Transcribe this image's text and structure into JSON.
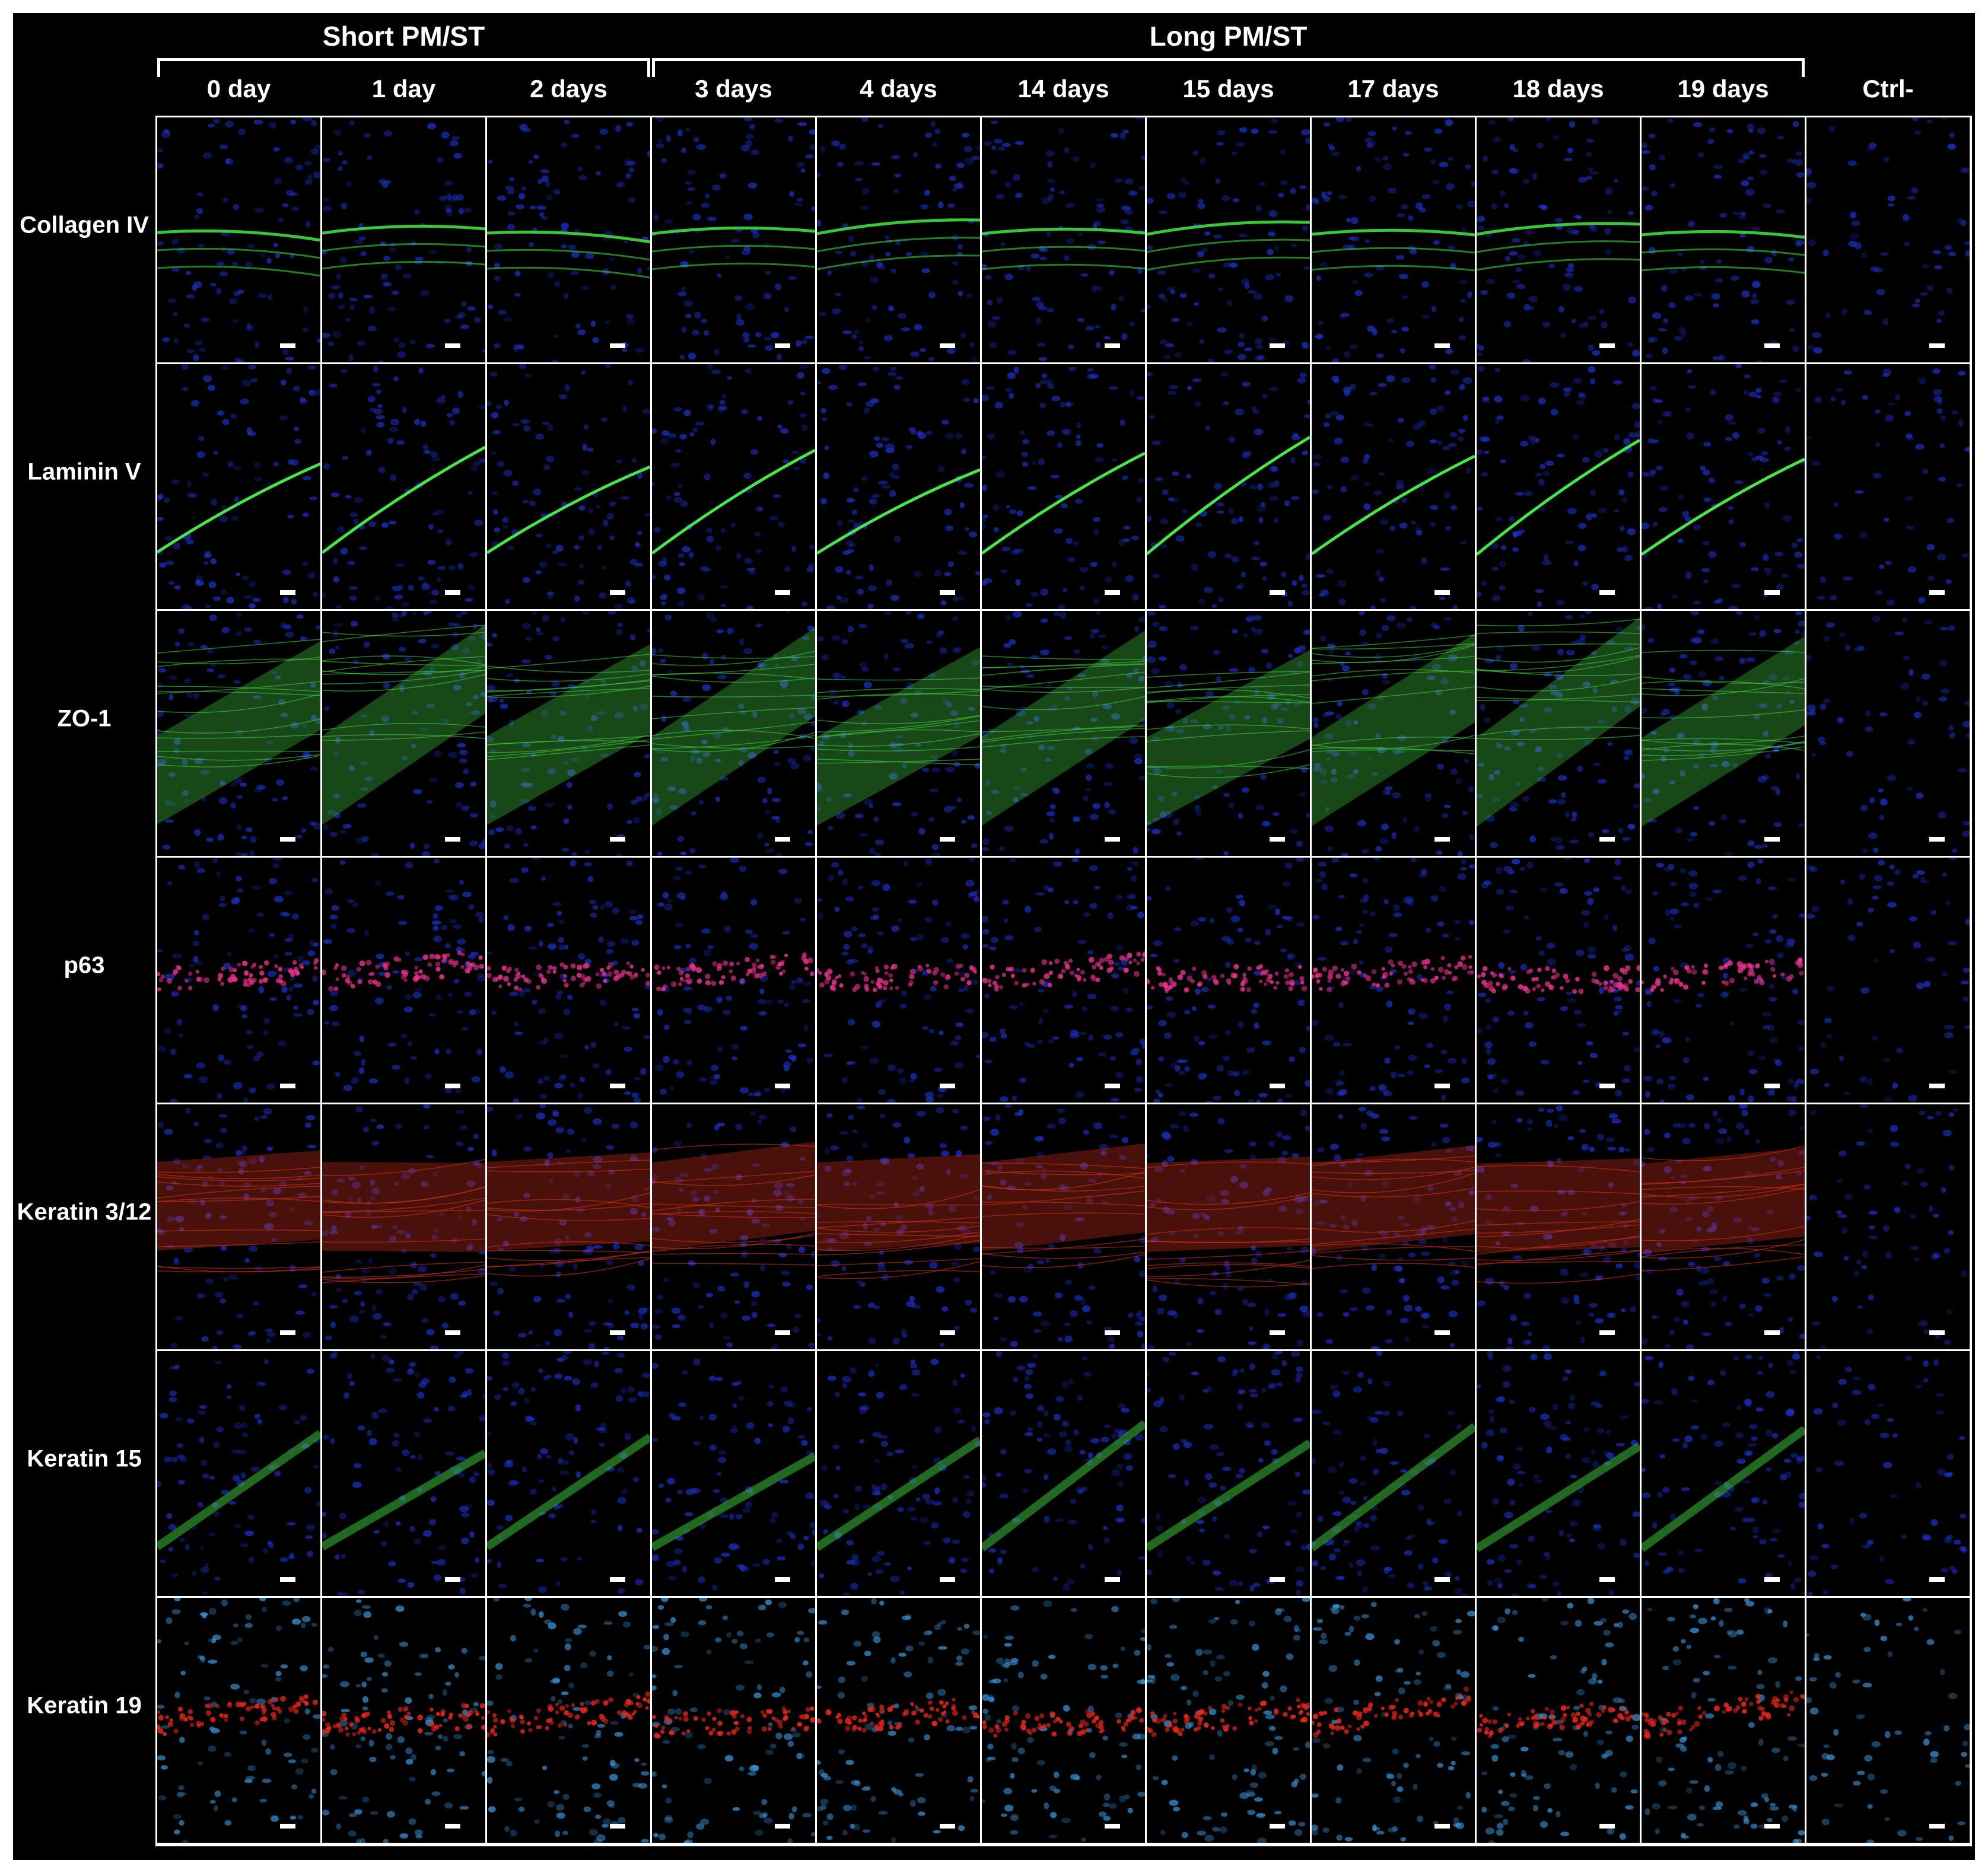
{
  "groups": [
    {
      "label": "Short PM/ST",
      "span": [
        0,
        2
      ]
    },
    {
      "label": "Long PM/ST",
      "span": [
        3,
        9
      ]
    }
  ],
  "columns": [
    "0 day",
    "1 day",
    "2 days",
    "3 days",
    "4 days",
    "14 days",
    "15 days",
    "17 days",
    "18 days",
    "19 days",
    "Ctrl-"
  ],
  "rows": [
    {
      "label": "Collagen IV",
      "stain": "collagen",
      "color": "#3cd23c"
    },
    {
      "label": "Laminin V",
      "stain": "laminin",
      "color": "#4cf04c"
    },
    {
      "label": "ZO-1",
      "stain": "zo1",
      "color": "#44cc44"
    },
    {
      "label": "p63",
      "stain": "p63",
      "color": "#e6328c"
    },
    {
      "label": "Keratin 3/12",
      "stain": "k312",
      "color": "#d2321e"
    },
    {
      "label": "Keratin 15",
      "stain": "k15",
      "color": "#3cbe3c"
    },
    {
      "label": "Keratin 19",
      "stain": "k19",
      "color": "#e6281e"
    }
  ],
  "nucleus_color": "#1e32c8",
  "k19_nucleus_color": "#3c96dc"
}
